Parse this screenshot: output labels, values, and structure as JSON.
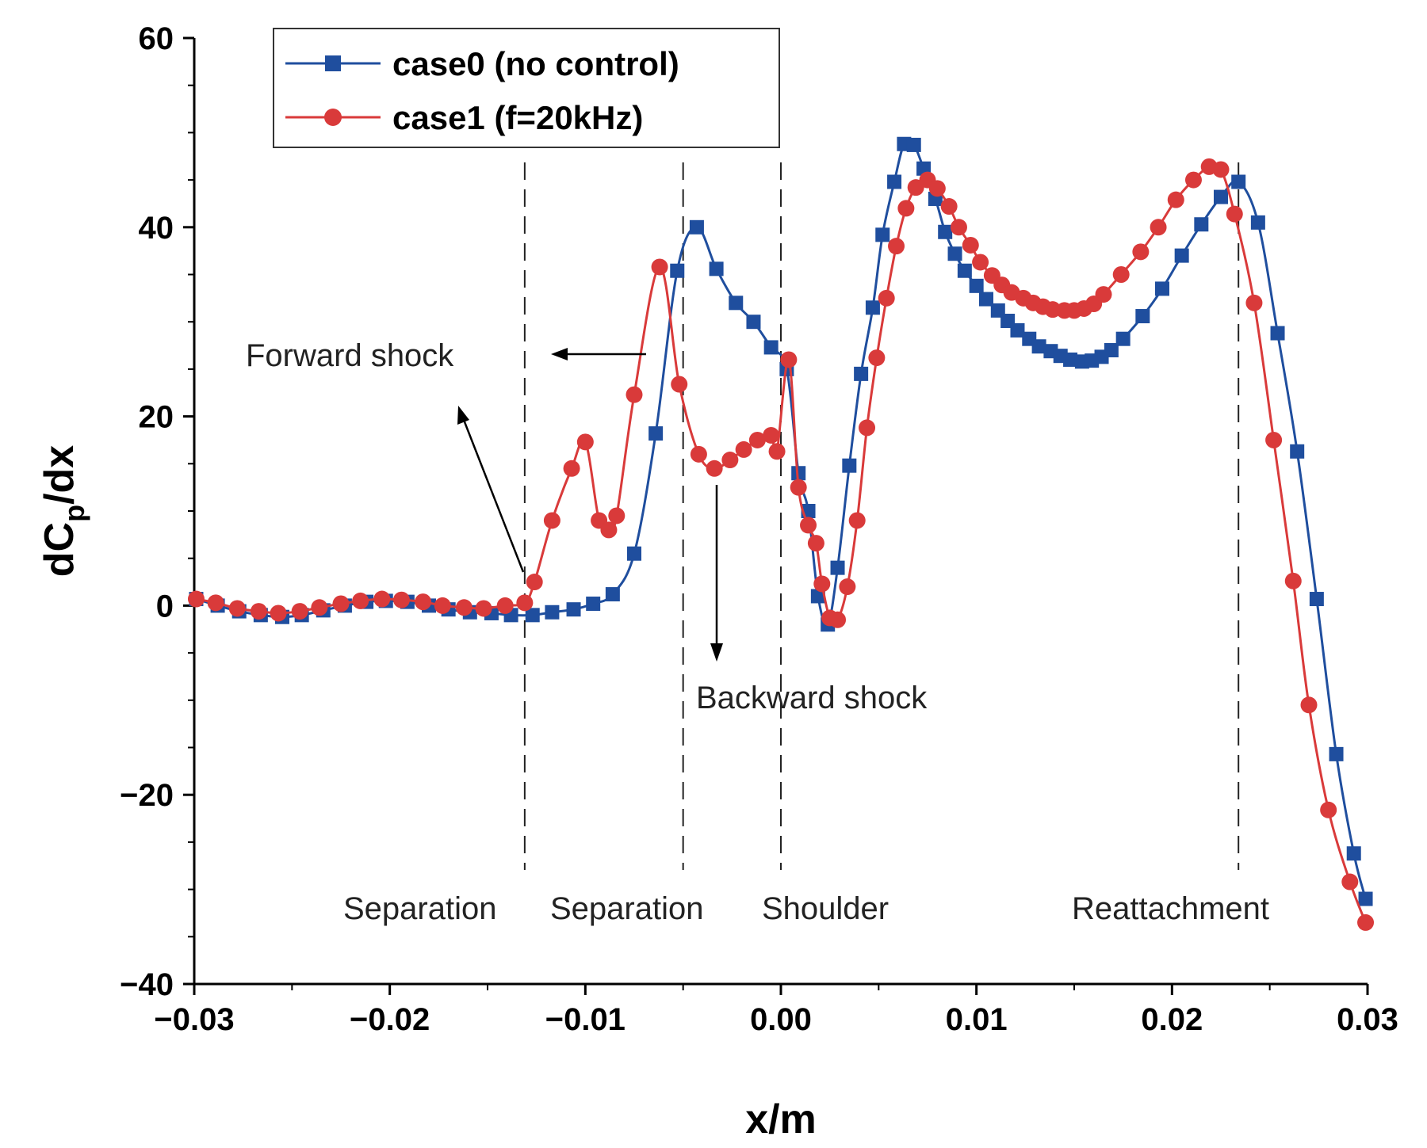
{
  "chart_data": {
    "type": "line",
    "title": "",
    "xlabel": "x/m",
    "ylabel_main": "dC",
    "ylabel_sub": "p",
    "ylabel_tail": "/dx",
    "xlim": [
      -0.03,
      0.03
    ],
    "ylim": [
      -40,
      60
    ],
    "xticks": [
      -0.03,
      -0.02,
      -0.01,
      0.0,
      0.01,
      0.02,
      0.03
    ],
    "xtick_labels": [
      "−0.03",
      "−0.02",
      "−0.01",
      "0.00",
      "0.01",
      "0.02",
      "0.03"
    ],
    "yticks": [
      -40,
      -20,
      0,
      20,
      40,
      60
    ],
    "ytick_labels": [
      "−40",
      "−20",
      "0",
      "20",
      "40",
      "60"
    ],
    "legend_position": "top-left",
    "series": [
      {
        "name": "case0 (no control)",
        "color": "#1f4e9e",
        "marker": "square",
        "x": [
          -0.0299,
          -0.0288,
          -0.0277,
          -0.0266,
          -0.0255,
          -0.0245,
          -0.0234,
          -0.0223,
          -0.0212,
          -0.0202,
          -0.0191,
          -0.018,
          -0.017,
          -0.0159,
          -0.0148,
          -0.0138,
          -0.0127,
          -0.0117,
          -0.0106,
          -0.0096,
          -0.0086,
          -0.0075,
          -0.0064,
          -0.0053,
          -0.0043,
          -0.0033,
          -0.0023,
          -0.0014,
          -0.0005,
          0.0003,
          0.0009,
          0.0014,
          0.0019,
          0.0024,
          0.0029,
          0.0035,
          0.0041,
          0.0047,
          0.0052,
          0.0058,
          0.0063,
          0.0068,
          0.0073,
          0.0079,
          0.0084,
          0.0089,
          0.0094,
          0.01,
          0.0105,
          0.0111,
          0.0116,
          0.0121,
          0.0127,
          0.0132,
          0.0138,
          0.0143,
          0.0148,
          0.0154,
          0.0159,
          0.0164,
          0.0169,
          0.0175,
          0.0185,
          0.0195,
          0.0205,
          0.0215,
          0.0225,
          0.0234,
          0.0244,
          0.0254,
          0.0264,
          0.0274,
          0.0284,
          0.0293,
          0.0299
        ],
        "values": [
          0.7,
          0.0,
          -0.6,
          -1.0,
          -1.2,
          -1.0,
          -0.5,
          0.0,
          0.4,
          0.5,
          0.4,
          0.0,
          -0.4,
          -0.7,
          -0.8,
          -1.0,
          -1.0,
          -0.7,
          -0.4,
          0.2,
          1.2,
          5.5,
          18.2,
          35.4,
          40.0,
          35.6,
          32.0,
          30.0,
          27.3,
          25.0,
          14.0,
          10.0,
          1.0,
          -2.0,
          4.0,
          14.8,
          24.5,
          31.5,
          39.2,
          44.8,
          48.8,
          48.7,
          46.2,
          43.0,
          39.5,
          37.2,
          35.4,
          33.8,
          32.4,
          31.2,
          30.1,
          29.1,
          28.2,
          27.4,
          26.9,
          26.4,
          26.0,
          25.8,
          25.9,
          26.3,
          27.0,
          28.2,
          30.6,
          33.5,
          37.0,
          40.3,
          43.2,
          44.8,
          40.5,
          28.8,
          16.3,
          0.7,
          -15.7,
          -26.2,
          -31.0
        ]
      },
      {
        "name": "case1 (f=20kHz)",
        "color": "#d93a3a",
        "marker": "circle",
        "x": [
          -0.0299,
          -0.0289,
          -0.0278,
          -0.0267,
          -0.0257,
          -0.0246,
          -0.0236,
          -0.0225,
          -0.0215,
          -0.0204,
          -0.0194,
          -0.0183,
          -0.0173,
          -0.0162,
          -0.0152,
          -0.0141,
          -0.0131,
          -0.0126,
          -0.0117,
          -0.0107,
          -0.01,
          -0.0093,
          -0.0088,
          -0.0084,
          -0.0075,
          -0.0062,
          -0.0052,
          -0.0042,
          -0.0034,
          -0.0026,
          -0.0019,
          -0.0012,
          -0.0005,
          -0.0002,
          0.0004,
          0.0009,
          0.0014,
          0.0018,
          0.0021,
          0.0025,
          0.0029,
          0.0034,
          0.0039,
          0.0044,
          0.0049,
          0.0054,
          0.0059,
          0.0064,
          0.0069,
          0.0075,
          0.008,
          0.0086,
          0.0091,
          0.0097,
          0.0102,
          0.0108,
          0.0113,
          0.0118,
          0.0124,
          0.0129,
          0.0134,
          0.0139,
          0.0145,
          0.015,
          0.0155,
          0.016,
          0.0165,
          0.0174,
          0.0184,
          0.0193,
          0.0202,
          0.0211,
          0.0219,
          0.0225,
          0.0232,
          0.0242,
          0.0252,
          0.0262,
          0.027,
          0.028,
          0.0291,
          0.0299
        ],
        "values": [
          0.7,
          0.3,
          -0.3,
          -0.6,
          -0.8,
          -0.6,
          -0.2,
          0.2,
          0.5,
          0.7,
          0.6,
          0.4,
          0.0,
          -0.2,
          -0.3,
          0.0,
          0.3,
          2.5,
          9.0,
          14.5,
          17.3,
          9.0,
          8.0,
          9.5,
          22.3,
          35.8,
          23.4,
          16.0,
          14.5,
          15.4,
          16.5,
          17.5,
          18.0,
          16.3,
          26.0,
          12.5,
          8.5,
          6.6,
          2.3,
          -1.3,
          -1.5,
          2.0,
          9.0,
          18.8,
          26.2,
          32.5,
          38.0,
          42.0,
          44.2,
          45.0,
          44.1,
          42.2,
          40.0,
          38.1,
          36.3,
          34.9,
          33.9,
          33.1,
          32.5,
          32.0,
          31.6,
          31.3,
          31.2,
          31.2,
          31.4,
          31.9,
          32.9,
          35.0,
          37.4,
          40.0,
          42.9,
          45.0,
          46.4,
          46.1,
          41.4,
          32.0,
          17.5,
          2.6,
          -10.5,
          -21.6,
          -29.2,
          -33.5
        ]
      }
    ],
    "vlines": [
      {
        "x": -0.0131,
        "label": "Separation",
        "label_color": "#d93a3a"
      },
      {
        "x": -0.005,
        "label": "Separation",
        "label_color": "#23307e"
      },
      {
        "x": 0.0,
        "label": "Shoulder",
        "label_color": "#222222"
      },
      {
        "x": 0.0234,
        "label": "Reattachment",
        "label_color": "#222222"
      }
    ],
    "annotations": [
      {
        "text": "Forward shock"
      },
      {
        "text": "Backward shock"
      }
    ]
  }
}
